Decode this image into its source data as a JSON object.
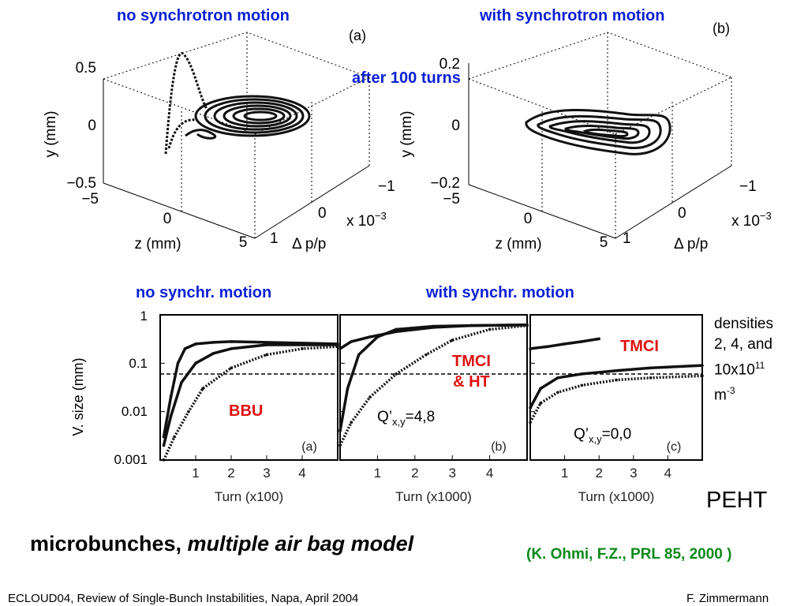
{
  "headings": {
    "top_left": "no synchrotron motion",
    "top_right": "with synchrotron motion",
    "center": "after 100 turns",
    "bottom_left": "no synchr. motion",
    "bottom_right": "with synchr. motion"
  },
  "plot3d_a": {
    "panel_label": "(a)",
    "y_label": "y (mm)",
    "y_ticks": [
      "0.5",
      "0",
      "−0.5"
    ],
    "z_label": "z (mm)",
    "z_ticks": [
      "−5",
      "0",
      "5"
    ],
    "dp_label": "Δ p/p",
    "dp_ticks": [
      "−1",
      "0",
      "1"
    ],
    "dp_exp": "x 10",
    "dp_exp_power": "−3"
  },
  "plot3d_b": {
    "panel_label": "(b)",
    "y_label": "y (mm)",
    "y_ticks": [
      "0.2",
      "0",
      "−0.2"
    ],
    "z_label": "z (mm)",
    "z_ticks": [
      "−5",
      "0",
      "5"
    ],
    "dp_label": "Δ p/p",
    "dp_ticks": [
      "−1",
      "0",
      "1"
    ],
    "dp_exp": "x 10",
    "dp_exp_power": "−3"
  },
  "chart_data": [
    {
      "type": "line",
      "panel_label": "(a)",
      "ylabel": "V. size (mm)",
      "y_scale": "log",
      "ylim": [
        0.001,
        1
      ],
      "y_ticks": [
        "1",
        "0.1",
        "0.01",
        "0.001"
      ],
      "xlabel": "Turn (x100)",
      "x_ticks": [
        "1",
        "2",
        "3",
        "4"
      ],
      "xlim": [
        0,
        5
      ],
      "annotation": "BBU",
      "threshold": 0.06,
      "series": [
        {
          "x": [
            0.1,
            0.3,
            0.5,
            0.7,
            1.0,
            1.5,
            2,
            3,
            4,
            5
          ],
          "y": [
            0.003,
            0.02,
            0.1,
            0.2,
            0.25,
            0.27,
            0.28,
            0.27,
            0.26,
            0.25
          ]
        },
        {
          "x": [
            0.1,
            0.3,
            0.6,
            1.0,
            1.5,
            2,
            3,
            4,
            5
          ],
          "y": [
            0.002,
            0.008,
            0.04,
            0.1,
            0.16,
            0.2,
            0.24,
            0.24,
            0.24
          ]
        },
        {
          "x": [
            0.1,
            0.4,
            0.8,
            1.2,
            2,
            3,
            4,
            5
          ],
          "y": [
            0.001,
            0.003,
            0.01,
            0.03,
            0.08,
            0.15,
            0.2,
            0.22
          ]
        }
      ]
    },
    {
      "type": "line",
      "panel_label": "(b)",
      "xlabel": "Turn (x1000)",
      "x_ticks": [
        "1",
        "2",
        "3",
        "4"
      ],
      "xlim": [
        0,
        5
      ],
      "ylim": [
        0.001,
        1
      ],
      "annotation": "TMCI & HT",
      "annotation_lines": [
        "TMCI",
        "& HT"
      ],
      "q_prefix": "Q’",
      "q_sub": "x,y",
      "q_value": "=4,8",
      "threshold": 0.06,
      "series": [
        {
          "x": [
            0,
            0.3,
            0.8,
            1.5,
            2.5,
            3.5,
            5
          ],
          "y": [
            0.2,
            0.28,
            0.35,
            0.45,
            0.55,
            0.6,
            0.62
          ]
        },
        {
          "x": [
            0,
            0.2,
            0.5,
            1.0,
            1.5,
            2.5,
            3.5,
            5
          ],
          "y": [
            0.004,
            0.03,
            0.15,
            0.35,
            0.5,
            0.58,
            0.6,
            0.62
          ]
        },
        {
          "x": [
            0,
            0.3,
            0.8,
            1.5,
            2.3,
            3.0,
            4.0,
            5
          ],
          "y": [
            0.002,
            0.006,
            0.02,
            0.06,
            0.15,
            0.3,
            0.5,
            0.6
          ]
        }
      ]
    },
    {
      "type": "line",
      "panel_label": "(c)",
      "xlabel": "Turn (x1000)",
      "x_ticks": [
        "1",
        "2",
        "3",
        "4"
      ],
      "xlim": [
        0,
        5
      ],
      "ylim": [
        0.001,
        1
      ],
      "annotation": "TMCI",
      "q_prefix": "Q’",
      "q_sub": "x,y",
      "q_value": "=0,0",
      "threshold": 0.06,
      "series": [
        {
          "x": [
            0,
            0.5,
            1.0,
            1.5,
            2.0
          ],
          "y": [
            0.2,
            0.22,
            0.25,
            0.28,
            0.32
          ]
        },
        {
          "x": [
            0,
            0.3,
            0.8,
            1.5,
            2.5,
            3.5,
            5
          ],
          "y": [
            0.012,
            0.03,
            0.05,
            0.06,
            0.07,
            0.08,
            0.09
          ]
        },
        {
          "x": [
            0,
            0.3,
            0.8,
            1.5,
            2.5,
            3.5,
            5
          ],
          "y": [
            0.006,
            0.015,
            0.025,
            0.035,
            0.045,
            0.05,
            0.055
          ]
        }
      ]
    }
  ],
  "side_note": {
    "line1": "densities",
    "line2": "2, 4, and",
    "line3_base": "10x10",
    "line3_sup": "11",
    "line4_base": "m",
    "line4_sup": "-3"
  },
  "peht": "PEHT",
  "caption": {
    "part1": "microbunches, ",
    "part2": "multiple air bag model"
  },
  "reference": "(K. Ohmi, F.Z., PRL 85, 2000 )",
  "footer": {
    "left": "ECLOUD04, Review of Single-Bunch Instabilities, Napa, April 2004",
    "right": "F. Zimmermann"
  },
  "colors": {
    "heading_blue": "#0a1fd6",
    "annotation_red": "#e01010",
    "reference_green": "#0b8a1a",
    "curve": "#111111"
  }
}
